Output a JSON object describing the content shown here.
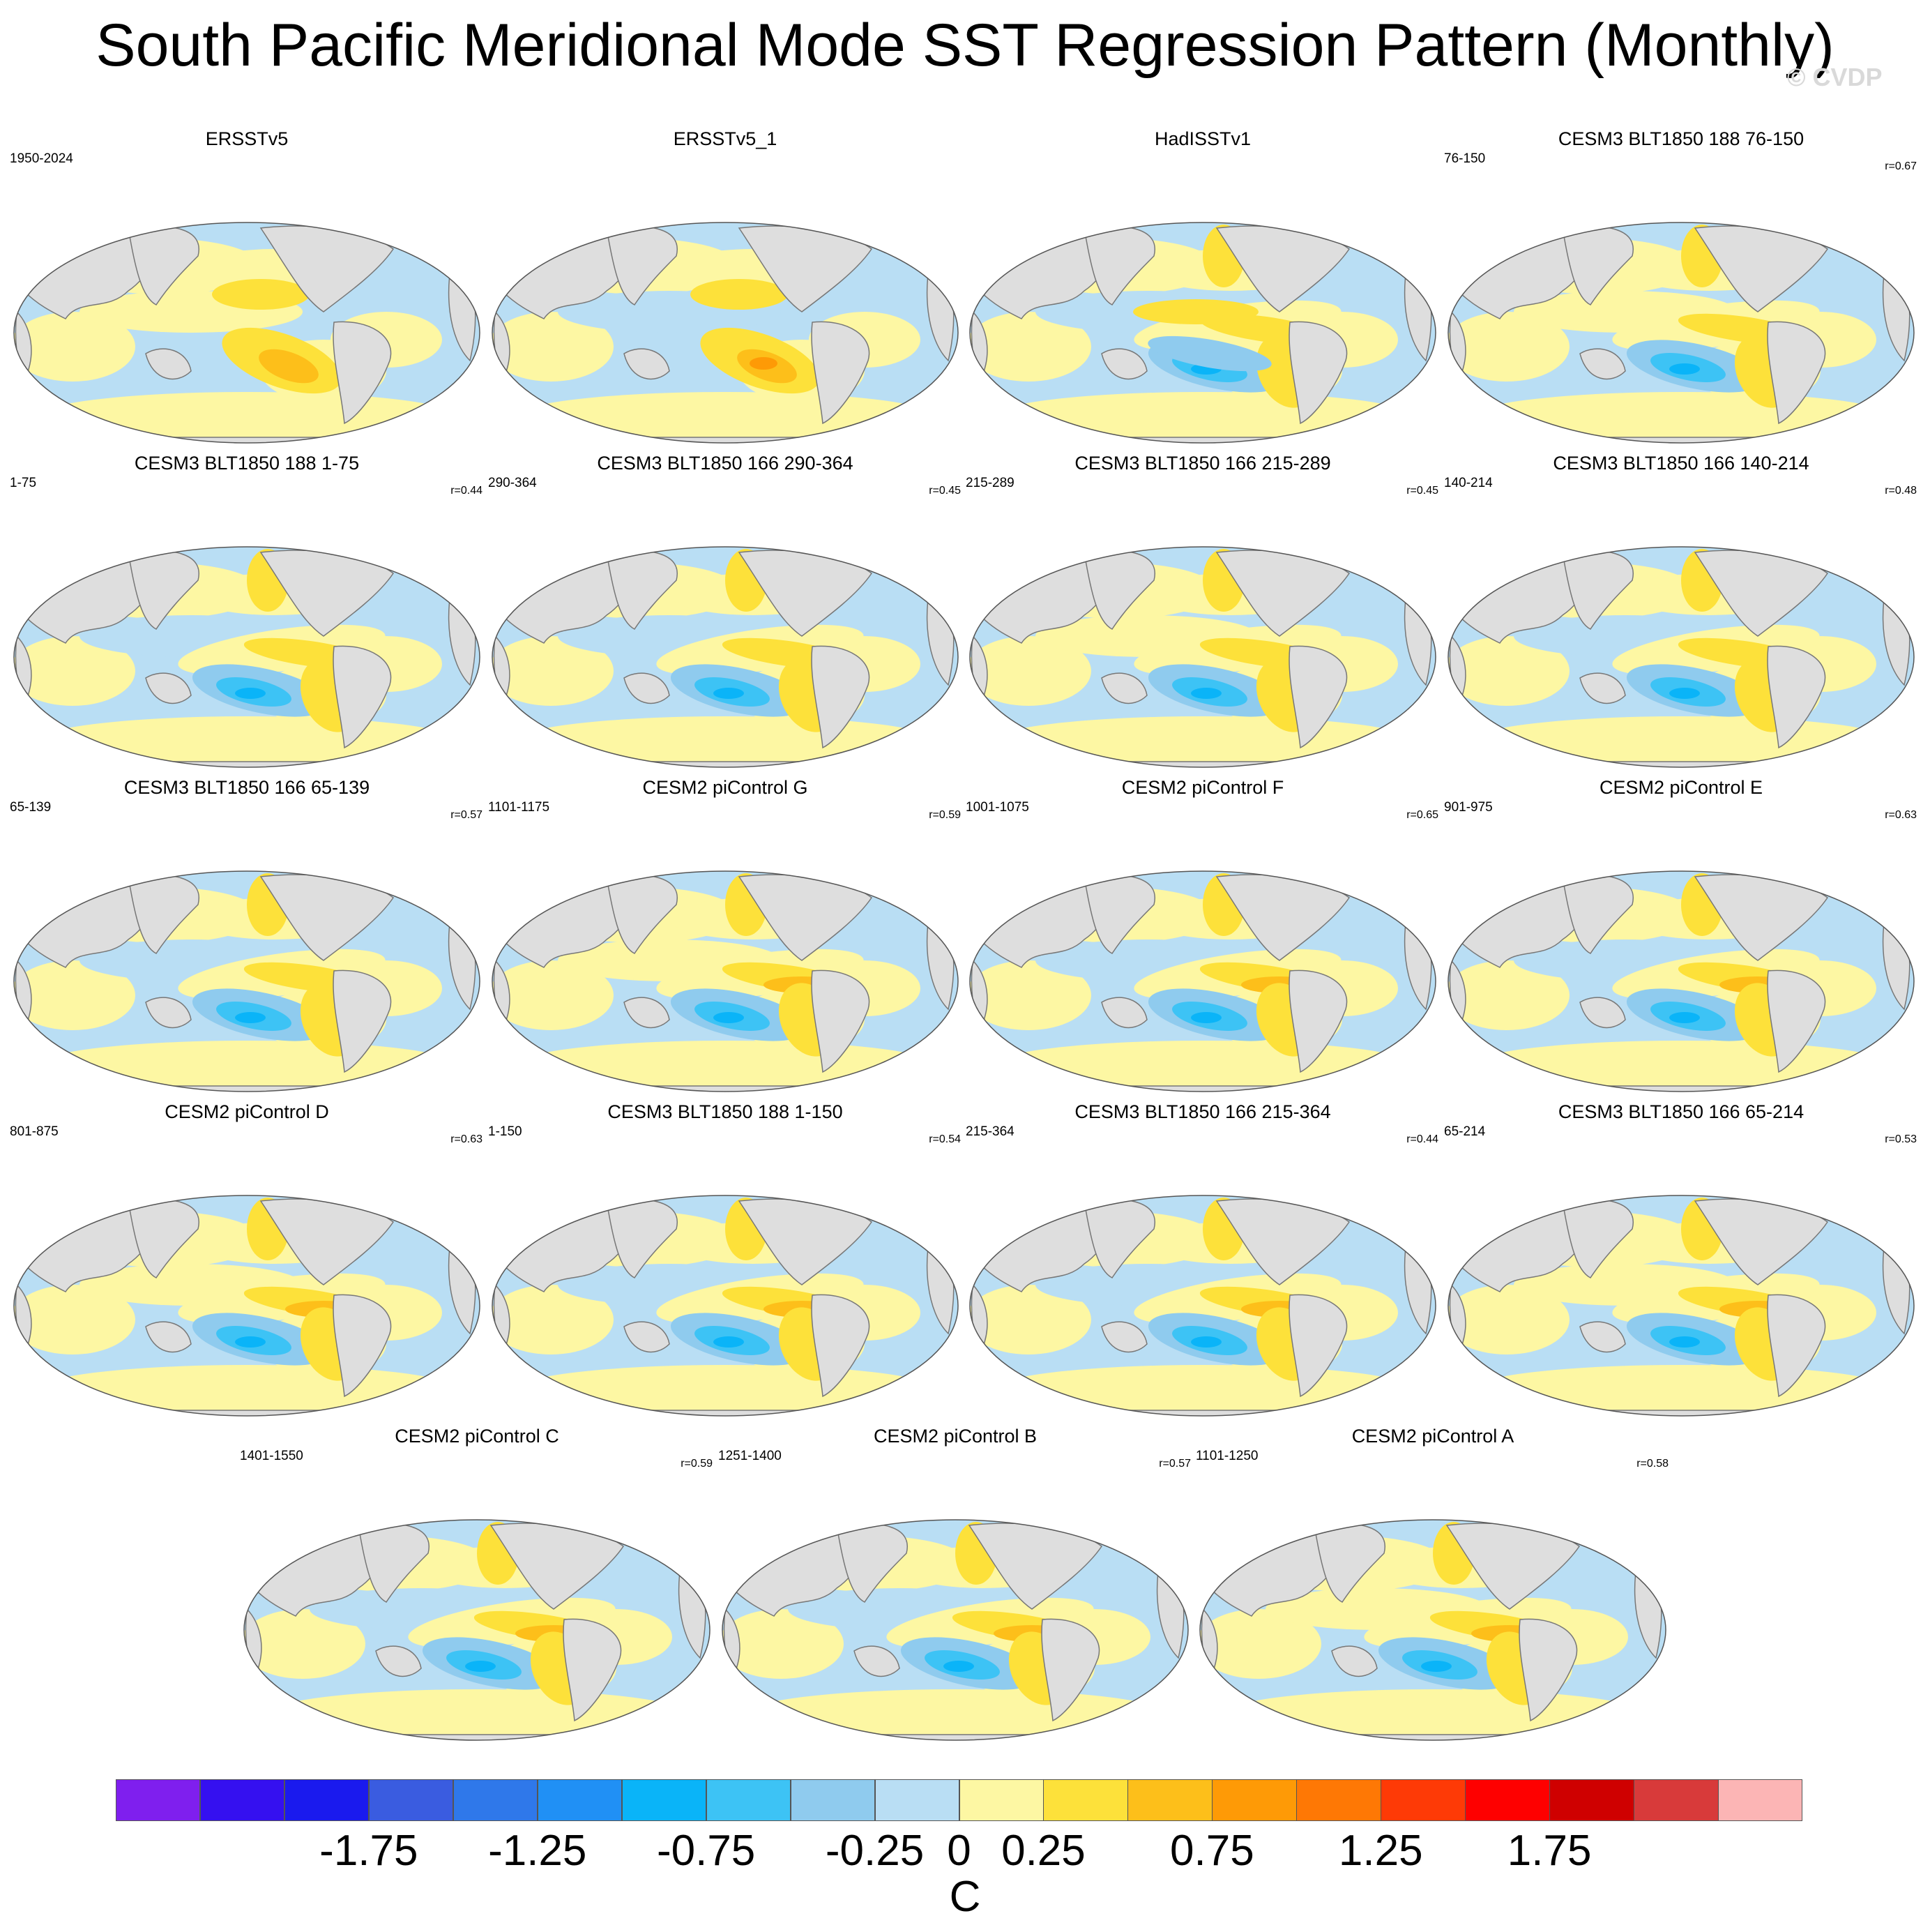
{
  "title": "South Pacific Meridional Mode SST Regression Pattern (Monthly)",
  "copyright": "© CVDP",
  "chart_data": {
    "type": "heatmap",
    "variable": "SST regression",
    "projection": "global map (Robinson-like)",
    "units": "C",
    "panels": [
      {
        "name": "ERSSTv5",
        "years": "1950-2024",
        "corr": ""
      },
      {
        "name": "ERSSTv5_1",
        "years": "",
        "corr": ""
      },
      {
        "name": "HadISSTv1",
        "years": "",
        "corr": ""
      },
      {
        "name": "CESM3 BLT1850 188 76-150",
        "years": "76-150",
        "corr": "r=0.67"
      },
      {
        "name": "CESM3 BLT1850 188 1-75",
        "years": "1-75",
        "corr": "r=0.44"
      },
      {
        "name": "CESM3 BLT1850 166 290-364",
        "years": "290-364",
        "corr": "r=0.45"
      },
      {
        "name": "CESM3 BLT1850 166 215-289",
        "years": "215-289",
        "corr": "r=0.45"
      },
      {
        "name": "CESM3 BLT1850 166 140-214",
        "years": "140-214",
        "corr": "r=0.48"
      },
      {
        "name": "CESM3 BLT1850 166 65-139",
        "years": "65-139",
        "corr": "r=0.57"
      },
      {
        "name": "CESM2 piControl G",
        "years": "1101-1175",
        "corr": "r=0.59"
      },
      {
        "name": "CESM2 piControl F",
        "years": "1001-1075",
        "corr": "r=0.65"
      },
      {
        "name": "CESM2 piControl E",
        "years": "901-975",
        "corr": "r=0.63"
      },
      {
        "name": "CESM2 piControl D",
        "years": "801-875",
        "corr": "r=0.63"
      },
      {
        "name": "CESM3 BLT1850 188 1-150",
        "years": "1-150",
        "corr": "r=0.54"
      },
      {
        "name": "CESM3 BLT1850 166 215-364",
        "years": "215-364",
        "corr": "r=0.44"
      },
      {
        "name": "CESM3 BLT1850 166 65-214",
        "years": "65-214",
        "corr": "r=0.53"
      },
      {
        "name": "CESM2 piControl C",
        "years": "1401-1550",
        "corr": "r=0.59"
      },
      {
        "name": "CESM2 piControl B",
        "years": "1251-1400",
        "corr": "r=0.57"
      },
      {
        "name": "CESM2 piControl A",
        "years": "1101-1250",
        "corr": "r=0.58"
      }
    ],
    "colorbar": {
      "colors": [
        "#7f1fee",
        "#3510f0",
        "#1a1aee",
        "#3a5ce0",
        "#2f78ea",
        "#2090f5",
        "#0ab4f8",
        "#3dc3f5",
        "#8fcbee",
        "#b9def4",
        "#fdf7a3",
        "#fde13a",
        "#fdbf1a",
        "#fe9a06",
        "#fe7805",
        "#fe3a06",
        "#fe0000",
        "#cf0000",
        "#d83a3a",
        "#fcb5b5"
      ],
      "tick_labels": [
        "-1.75",
        "-1.25",
        "-0.75",
        "-0.25",
        "0",
        "0.25",
        "0.75",
        "1.25",
        "1.75"
      ],
      "tick_after_box": [
        3,
        5,
        7,
        9,
        10,
        11,
        13,
        15,
        17
      ]
    }
  }
}
